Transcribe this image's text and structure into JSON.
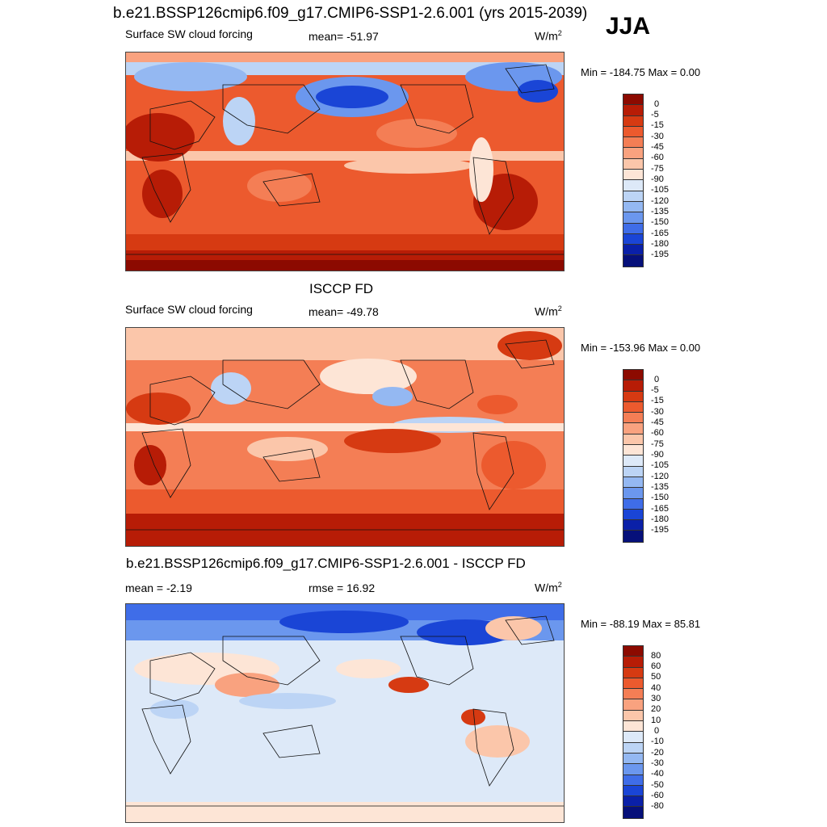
{
  "header": {
    "title": "b.e21.BSSP126cmip6.f09_g17.CMIP6-SSP1-2.6.001 (yrs 2015-2039)",
    "season": "JJA"
  },
  "panels": [
    {
      "id": "model",
      "left_label": "Surface SW cloud forcing",
      "mean_label": "mean= -51.97",
      "units": "W/m",
      "units_sup": "2",
      "minmax": "Min = -184.75 Max =   0.00",
      "colorbar": {
        "labels": [
          "0",
          "-5",
          "-15",
          "-30",
          "-45",
          "-60",
          "-75",
          "-90",
          "-105",
          "-120",
          "-135",
          "-150",
          "-165",
          "-180",
          "-195"
        ],
        "colors": [
          "#8c0a00",
          "#b71c06",
          "#d63a12",
          "#ec5a2e",
          "#f47e55",
          "#f9a27f",
          "#fbc6aa",
          "#fde5d6",
          "#dde9f8",
          "#bcd4f5",
          "#94b8f2",
          "#6b97ee",
          "#3f6de8",
          "#1a45d6",
          "#0a20a8",
          "#06107a"
        ]
      }
    },
    {
      "id": "obs",
      "title": "ISCCP FD",
      "left_label": "Surface SW cloud forcing",
      "mean_label": "mean= -49.78",
      "units": "W/m",
      "units_sup": "2",
      "minmax": "Min = -153.96 Max =   0.00",
      "colorbar": {
        "labels": [
          "0",
          "-5",
          "-15",
          "-30",
          "-45",
          "-60",
          "-75",
          "-90",
          "-105",
          "-120",
          "-135",
          "-150",
          "-165",
          "-180",
          "-195"
        ],
        "colors": [
          "#8c0a00",
          "#b71c06",
          "#d63a12",
          "#ec5a2e",
          "#f47e55",
          "#f9a27f",
          "#fbc6aa",
          "#fde5d6",
          "#dde9f8",
          "#bcd4f5",
          "#94b8f2",
          "#6b97ee",
          "#3f6de8",
          "#1a45d6",
          "#0a20a8",
          "#06107a"
        ]
      }
    },
    {
      "id": "diff",
      "title": "b.e21.BSSP126cmip6.f09_g17.CMIP6-SSP1-2.6.001 - ISCCP FD",
      "left_label": "mean =  -2.19",
      "mean_label": "rmse =  16.92",
      "units": "W/m",
      "units_sup": "2",
      "minmax": "Min = -88.19 Max =  85.81",
      "colorbar": {
        "labels": [
          "80",
          "60",
          "50",
          "40",
          "30",
          "20",
          "10",
          "0",
          "-10",
          "-20",
          "-30",
          "-40",
          "-50",
          "-60",
          "-80"
        ],
        "colors": [
          "#8c0a00",
          "#b71c06",
          "#d63a12",
          "#ec5a2e",
          "#f47e55",
          "#f9a27f",
          "#fbc6aa",
          "#fde5d6",
          "#dde9f8",
          "#bcd4f5",
          "#94b8f2",
          "#6b97ee",
          "#3f6de8",
          "#1a45d6",
          "#0a20a8",
          "#06107a"
        ]
      }
    }
  ],
  "map_colors": {
    "deep_red": "#8c0a00",
    "red": "#d63a12",
    "orange": "#ec5a2e",
    "salmon": "#f47e55",
    "peach": "#f9a27f",
    "light_peach": "#fbc6aa",
    "cream": "#fde5d6",
    "pale_blue": "#dde9f8",
    "light_blue": "#bcd4f5",
    "mid_blue": "#6b97ee",
    "blue": "#3f6de8",
    "deep_blue": "#1a45d6"
  }
}
